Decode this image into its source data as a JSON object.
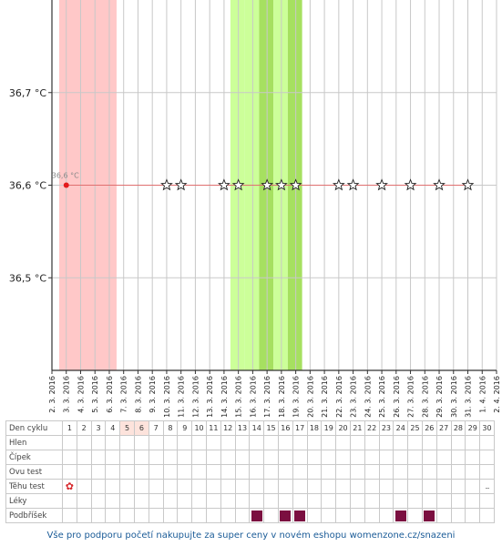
{
  "chart_data": {
    "type": "line",
    "ylabel_ticks": [
      "36,5 °C",
      "36,6 °C",
      "36,7 °C"
    ],
    "y_ticks": [
      36.5,
      36.6,
      36.7
    ],
    "ylim": [
      36.4,
      36.8
    ],
    "x": [
      "2. 3. 2016",
      "3. 3. 2016",
      "4. 3. 2016",
      "5. 3. 2016",
      "6. 3. 2016",
      "7. 3. 2016",
      "8. 3. 2016",
      "9. 3. 2016",
      "10. 3. 2016",
      "11. 3. 2016",
      "12. 3. 2016",
      "13. 3. 2016",
      "14. 3. 2016",
      "15. 3. 2016",
      "16. 3. 2016",
      "17. 3. 2016",
      "18. 3. 2016",
      "19. 3. 2016",
      "20. 3. 2016",
      "21. 3. 2016",
      "22. 3. 2016",
      "23. 3. 2016",
      "24. 3. 2016",
      "25. 3. 2016",
      "26. 3. 2016",
      "27. 3. 2016",
      "28. 3. 2016",
      "29. 3. 2016",
      "30. 3. 2016",
      "31. 3. 2016",
      "1. 4. 2016",
      "2. 4. 2016"
    ],
    "series": [
      {
        "values": [
          null,
          36.6,
          36.6,
          36.6,
          36.6,
          36.6,
          36.6,
          36.6,
          36.6,
          36.6,
          36.6,
          36.6,
          36.6,
          36.6,
          36.6,
          36.6,
          36.6,
          36.6,
          36.6,
          36.6,
          36.6,
          36.6,
          36.6,
          36.6,
          36.6,
          36.6,
          36.6,
          36.6,
          36.6,
          36.6,
          null,
          null
        ]
      }
    ],
    "point_label": "36,6 °C",
    "point_label_index": 1,
    "star_indices": [
      8,
      9,
      12,
      13,
      15,
      16,
      17,
      20,
      21,
      23,
      25,
      27,
      29
    ],
    "menstruation_band": [
      0,
      4
    ],
    "fertile_band": [
      12,
      17
    ],
    "grid": true,
    "colors": {
      "menstruation": "#ffc8c8",
      "fertile_light": "#ccff99",
      "fertile_mid": "#a6e060",
      "fertile_dark": "#7cc22a",
      "line": "#e07070",
      "point": "#e41a1c",
      "grid": "#c8c8c8",
      "axis": "#333333"
    }
  },
  "table": {
    "rows": [
      {
        "key": "den",
        "label": "Den cyklu"
      },
      {
        "key": "hlen",
        "label": "Hlen"
      },
      {
        "key": "cipek",
        "label": "Čípek"
      },
      {
        "key": "ovu",
        "label": "Ovu test"
      },
      {
        "key": "tehu",
        "label": "Těhu test"
      },
      {
        "key": "leky",
        "label": "Léky"
      },
      {
        "key": "podbrisek",
        "label": "Podbříšek"
      }
    ],
    "days": [
      "1",
      "2",
      "3",
      "4",
      "5",
      "6",
      "7",
      "8",
      "9",
      "10",
      "11",
      "12",
      "13",
      "14",
      "15",
      "16",
      "17",
      "18",
      "19",
      "20",
      "21",
      "22",
      "23",
      "24",
      "25",
      "26",
      "27",
      "28",
      "29",
      "30"
    ],
    "highlight_days": [
      5,
      6
    ],
    "tehu_flower_day": 1,
    "tehu_flower_icon": "flower-icon",
    "tehu_end_mark": "...",
    "tehu_end_mark_day": 30,
    "podbrisek_days": [
      14,
      16,
      17,
      24,
      26
    ],
    "podbrisek_color": "#7b0f40"
  },
  "footer": {
    "text": "Vše pro podporu početí nakupujte za super ceny v novém eshopu womenzone.cz/snazeni"
  }
}
